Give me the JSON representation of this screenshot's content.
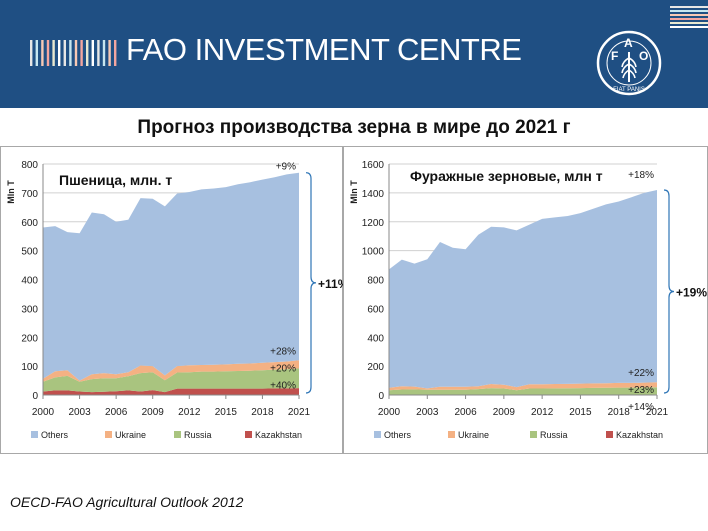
{
  "header": {
    "brand": "FAO INVESTMENT CENTRE",
    "logo_letters": [
      "F",
      "A",
      "O"
    ],
    "logo_motto": "FIAT PANIS",
    "background": "#1f4f83",
    "stripe_colors": [
      "#e6e6e6",
      "#c7e6f0",
      "#f7c9b5",
      "#f3a6a0",
      "#e8e8d0",
      "#ffffff"
    ]
  },
  "title": "Прогноз производства зерна в мире до 2021 г",
  "source": "OECD-FAO Agricultural Outlook 2012",
  "series_colors": {
    "Others": "#a7c0e0",
    "Ukraine": "#f4b183",
    "Russia": "#a9c47f",
    "Kazakhstan": "#c0504d"
  },
  "chart_data": [
    {
      "type": "area",
      "stacked": true,
      "title": "Пшеница, млн. т",
      "ylabel": "Mln T",
      "ylim": [
        0,
        800
      ],
      "yticks": [
        0,
        100,
        200,
        300,
        400,
        500,
        600,
        700,
        800
      ],
      "xticks": [
        2000,
        2003,
        2006,
        2009,
        2012,
        2015,
        2018,
        2021
      ],
      "x": [
        2000,
        2001,
        2002,
        2003,
        2004,
        2005,
        2006,
        2007,
        2008,
        2009,
        2010,
        2011,
        2012,
        2013,
        2014,
        2015,
        2016,
        2017,
        2018,
        2019,
        2020,
        2021
      ],
      "series": [
        {
          "name": "Kazakhstan",
          "values": [
            12,
            16,
            16,
            12,
            10,
            11,
            13,
            16,
            12,
            17,
            10,
            22,
            22,
            22,
            22,
            22,
            22,
            22,
            22,
            23,
            23,
            24
          ]
        },
        {
          "name": "Russia",
          "values": [
            34,
            45,
            50,
            34,
            45,
            47,
            45,
            49,
            64,
            62,
            41,
            56,
            57,
            59,
            59,
            60,
            61,
            62,
            64,
            65,
            66,
            68
          ]
        },
        {
          "name": "Ukraine",
          "values": [
            10,
            21,
            20,
            4,
            17,
            18,
            14,
            14,
            26,
            21,
            17,
            22,
            24,
            23,
            24,
            24,
            25,
            25,
            26,
            26,
            27,
            28
          ]
        },
        {
          "name": "Others",
          "values": [
            524,
            503,
            478,
            510,
            560,
            550,
            528,
            528,
            580,
            580,
            585,
            598,
            600,
            608,
            610,
            614,
            622,
            628,
            634,
            640,
            648,
            650
          ]
        }
      ],
      "annotations": {
        "top": "+9%",
        "Ukraine": "+28%",
        "Russia": "+20%",
        "Kazakhstan": "+40%",
        "total": "+11%"
      },
      "legend": [
        "Others",
        "Ukraine",
        "Russia",
        "Kazakhstan"
      ],
      "legend_position": "bottom",
      "grid": true
    },
    {
      "type": "area",
      "stacked": true,
      "title": "Фуражные зерновые, млн т",
      "ylabel": "Mln T",
      "ylim": [
        0,
        1600
      ],
      "yticks": [
        0,
        200,
        400,
        600,
        800,
        1000,
        1200,
        1400,
        1600
      ],
      "xticks": [
        2000,
        2003,
        2006,
        2009,
        2012,
        2015,
        2018,
        2021
      ],
      "x": [
        2000,
        2001,
        2002,
        2003,
        2004,
        2005,
        2006,
        2007,
        2008,
        2009,
        2010,
        2011,
        2012,
        2013,
        2014,
        2015,
        2016,
        2017,
        2018,
        2019,
        2020,
        2021
      ],
      "series": [
        {
          "name": "Kazakhstan",
          "values": [
            3,
            3,
            3,
            3,
            3,
            3,
            3,
            3,
            3,
            3,
            3,
            3,
            3,
            3,
            3,
            3,
            3,
            3,
            3,
            3,
            3,
            4
          ]
        },
        {
          "name": "Russia",
          "values": [
            30,
            35,
            36,
            33,
            33,
            34,
            34,
            38,
            45,
            42,
            30,
            42,
            42,
            43,
            44,
            45,
            46,
            47,
            48,
            48,
            49,
            50
          ]
        },
        {
          "name": "Ukraine",
          "values": [
            17,
            22,
            19,
            10,
            21,
            20,
            20,
            19,
            28,
            26,
            22,
            30,
            29,
            30,
            30,
            31,
            31,
            32,
            33,
            33,
            34,
            35
          ]
        },
        {
          "name": "Others",
          "values": [
            820,
            878,
            852,
            894,
            1003,
            963,
            953,
            1050,
            1090,
            1090,
            1085,
            1105,
            1146,
            1154,
            1163,
            1181,
            1210,
            1238,
            1256,
            1286,
            1314,
            1331
          ]
        }
      ],
      "annotations": {
        "top": "+18%",
        "Ukraine": "+22%",
        "Russia": "+23%",
        "Kazakhstan": "+14%",
        "total": "+19%"
      },
      "legend": [
        "Others",
        "Ukraine",
        "Russia",
        "Kazakhstan"
      ],
      "legend_position": "bottom",
      "grid": true
    }
  ]
}
